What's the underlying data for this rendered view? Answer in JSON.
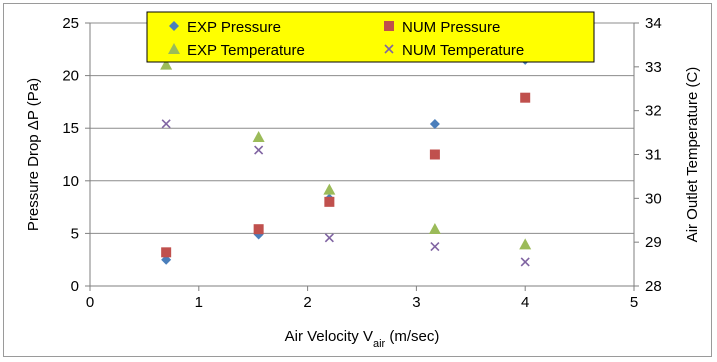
{
  "chart_data": {
    "type": "scatter",
    "xlabel_prefix": "Air Velocity V",
    "xlabel_sub": "air",
    "xlabel_suffix": " (m/sec)",
    "ylabel_left": "Pressure Drop ΔP (Pa)",
    "ylabel_right": "Air Outlet Temperature (C)",
    "xlim": [
      0,
      5
    ],
    "ylim_left": [
      0,
      25
    ],
    "ylim_right": [
      28,
      34
    ],
    "x_ticks": [
      "0",
      "1",
      "2",
      "3",
      "4",
      "5"
    ],
    "y_left_ticks": [
      "0",
      "5",
      "10",
      "15",
      "20",
      "25"
    ],
    "y_right_ticks": [
      "28",
      "29",
      "30",
      "31",
      "32",
      "33",
      "34"
    ],
    "grid": "horizontal",
    "legend_position": "top",
    "series": [
      {
        "name": "EXP Pressure",
        "axis": "left",
        "marker": "diamond",
        "color": "#4a7ebb",
        "x": [
          0.7,
          1.55,
          2.2,
          3.17,
          4.0
        ],
        "y": [
          2.5,
          4.9,
          8.3,
          15.4,
          21.5
        ]
      },
      {
        "name": "NUM Pressure",
        "axis": "left",
        "marker": "square",
        "color": "#c0504d",
        "x": [
          0.7,
          1.55,
          2.2,
          3.17,
          4.0
        ],
        "y": [
          3.2,
          5.4,
          8.0,
          12.5,
          17.9
        ]
      },
      {
        "name": "EXP Temperature",
        "axis": "right",
        "marker": "triangle",
        "color": "#9bbb59",
        "x": [
          0.7,
          1.55,
          2.2,
          3.17,
          4.0
        ],
        "y": [
          33.05,
          31.4,
          30.2,
          29.3,
          28.95
        ]
      },
      {
        "name": "NUM Temperature",
        "axis": "right",
        "marker": "x",
        "color": "#8064a2",
        "x": [
          0.7,
          1.55,
          2.2,
          3.17,
          4.0
        ],
        "y": [
          31.7,
          31.1,
          29.1,
          28.9,
          28.55
        ]
      }
    ]
  },
  "colors": {
    "legend_bg": "#ffff00",
    "grid": "#8c8c8c",
    "axis": "#7f7f7f"
  }
}
